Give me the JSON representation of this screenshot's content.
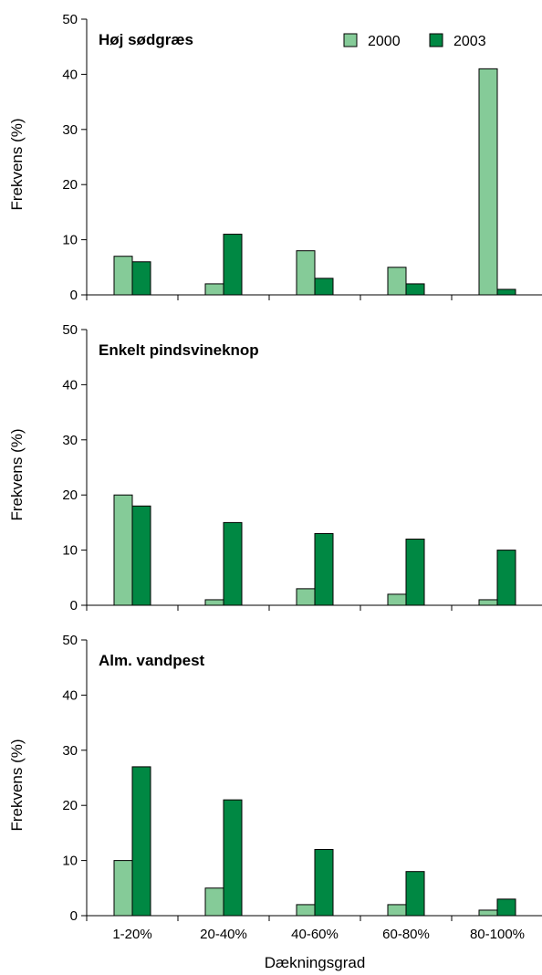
{
  "chart_data": [
    {
      "type": "bar",
      "title": "Høj sødgræs",
      "ylabel": "Frekvens (%)",
      "xlabel": "",
      "ylim": [
        0,
        50
      ],
      "yticks": [
        "0",
        "10",
        "20",
        "30",
        "40",
        "50"
      ],
      "categories": [
        "1-20%",
        "20-40%",
        "40-60%",
        "60-80%",
        "80-100%"
      ],
      "show_tick_labels": false,
      "legend": {
        "placement": "top-right",
        "shown": true
      },
      "series": [
        {
          "name": "2000",
          "color": "#85cb98",
          "values": [
            7,
            2,
            8,
            5,
            41
          ]
        },
        {
          "name": "2003",
          "color": "#008843",
          "values": [
            6,
            11,
            3,
            2,
            1
          ]
        }
      ]
    },
    {
      "type": "bar",
      "title": "Enkelt pindsvineknop",
      "ylabel": "Frekvens (%)",
      "xlabel": "",
      "ylim": [
        0,
        50
      ],
      "yticks": [
        "0",
        "10",
        "20",
        "30",
        "40",
        "50"
      ],
      "categories": [
        "1-20%",
        "20-40%",
        "40-60%",
        "60-80%",
        "80-100%"
      ],
      "show_tick_labels": false,
      "series": [
        {
          "name": "2000",
          "color": "#85cb98",
          "values": [
            20,
            1,
            3,
            2,
            1
          ]
        },
        {
          "name": "2003",
          "color": "#008843",
          "values": [
            18,
            15,
            13,
            12,
            10
          ]
        }
      ]
    },
    {
      "type": "bar",
      "title": "Alm. vandpest",
      "ylabel": "Frekvens (%)",
      "xlabel": "Dækningsgrad",
      "ylim": [
        0,
        50
      ],
      "yticks": [
        "0",
        "10",
        "20",
        "30",
        "40",
        "50"
      ],
      "categories": [
        "1-20%",
        "20-40%",
        "40-60%",
        "60-80%",
        "80-100%"
      ],
      "show_tick_labels": true,
      "series": [
        {
          "name": "2000",
          "color": "#85cb98",
          "values": [
            10,
            5,
            2,
            2,
            1
          ]
        },
        {
          "name": "2003",
          "color": "#008843",
          "values": [
            27,
            21,
            12,
            8,
            3
          ]
        }
      ]
    }
  ]
}
